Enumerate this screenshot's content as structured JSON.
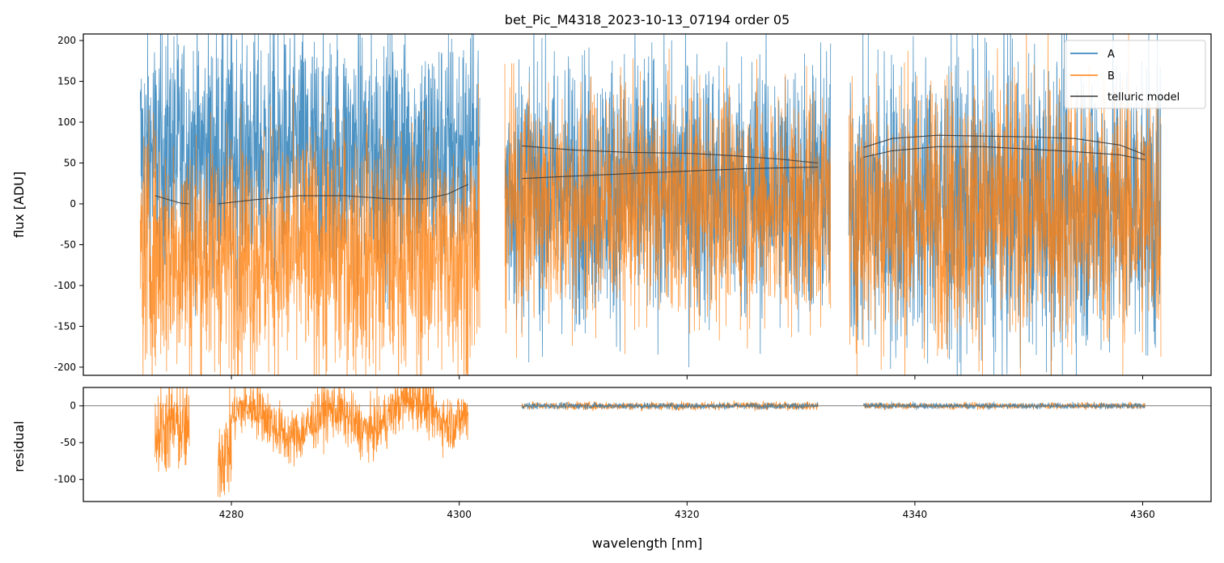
{
  "chart_data": [
    {
      "type": "line",
      "title": "bet_Pic_M4318_2023-10-13_07194  order 05",
      "xlabel": "",
      "ylabel": "flux [ADU]",
      "xlim": [
        4267,
        4366
      ],
      "ylim": [
        -210,
        208
      ],
      "yticks": [
        200,
        150,
        100,
        50,
        0,
        -50,
        -100,
        -150,
        -200
      ],
      "xticks": [
        4280,
        4300,
        4320,
        4340,
        4360
      ],
      "legend": {
        "placement": "top-right",
        "entries": [
          "A",
          "B",
          "telluric model"
        ]
      },
      "series": [
        {
          "name": "A",
          "color": "#1f77b4",
          "segments": [
            {
              "x_start": 4272.0,
              "x_end": 4301.8,
              "center": 60,
              "spread": 140,
              "style": "noisy spectrum, upper band"
            },
            {
              "x_start": 4304.0,
              "x_end": 4332.6,
              "center": 20,
              "spread": 150,
              "style": "noisy spectrum"
            },
            {
              "x_start": 4334.2,
              "x_end": 4361.6,
              "center": 0,
              "spread": 170,
              "style": "noisy spectrum"
            }
          ]
        },
        {
          "name": "B",
          "color": "#ff7f0e",
          "segments": [
            {
              "x_start": 4272.0,
              "x_end": 4301.8,
              "center": -60,
              "spread": 140,
              "style": "noisy spectrum, lower band"
            },
            {
              "x_start": 4304.0,
              "x_end": 4332.6,
              "center": 0,
              "spread": 130,
              "style": "noisy spectrum"
            },
            {
              "x_start": 4334.2,
              "x_end": 4361.6,
              "center": -10,
              "spread": 150,
              "style": "noisy spectrum"
            }
          ]
        },
        {
          "name": "telluric model",
          "color": "#3a3a3a",
          "curves": [
            {
              "x": [
                4273.3,
                4274.5,
                4275.5,
                4276.3
              ],
              "y": [
                10,
                5,
                1,
                0
              ]
            },
            {
              "x": [
                4278.8,
                4282,
                4286,
                4290,
                4294,
                4297,
                4299,
                4300.8
              ],
              "y": [
                0,
                5,
                10,
                10,
                6,
                6,
                12,
                24
              ]
            },
            {
              "x": [
                4305.5,
                4310,
                4315,
                4320,
                4324,
                4328,
                4331.5
              ],
              "y": [
                71,
                66,
                63,
                62,
                59,
                55,
                50
              ]
            },
            {
              "x": [
                4305.5,
                4310,
                4315,
                4320,
                4325,
                4331.5
              ],
              "y": [
                31,
                34,
                37,
                40,
                43,
                45
              ]
            },
            {
              "x": [
                4335.5,
                4338,
                4342,
                4346,
                4350,
                4354,
                4358,
                4360.2
              ],
              "y": [
                69,
                80,
                84,
                83,
                82,
                80,
                72,
                60
              ]
            },
            {
              "x": [
                4335.5,
                4338,
                4342,
                4346,
                4350,
                4354,
                4358,
                4360.2
              ],
              "y": [
                57,
                65,
                70,
                70,
                67,
                64,
                60,
                54
              ]
            }
          ]
        }
      ]
    },
    {
      "type": "line",
      "title": "",
      "xlabel": "wavelength [nm]",
      "ylabel": "residual",
      "xlim": [
        4267,
        4366
      ],
      "ylim": [
        -130,
        25
      ],
      "yticks": [
        0,
        -50,
        -100
      ],
      "xticks": [
        4280,
        4300,
        4320,
        4340,
        4360
      ],
      "hline": 0,
      "series": [
        {
          "name": "A",
          "color": "#1f77b4",
          "segments": [
            {
              "x_start": 4305.5,
              "x_end": 4331.5,
              "center": 0,
              "spread": 4
            },
            {
              "x_start": 4335.5,
              "x_end": 4360.2,
              "center": 0,
              "spread": 4
            }
          ]
        },
        {
          "name": "B",
          "color": "#ff7f0e",
          "segments": [
            {
              "x_start": 4273.3,
              "x_end": 4276.3,
              "center": -40,
              "spread": 60,
              "style": "deep dips to below -130"
            },
            {
              "x_start": 4278.8,
              "x_end": 4280.0,
              "center": -70,
              "spread": 60,
              "style": "deep dips to below -130"
            },
            {
              "x_start": 4280.0,
              "x_end": 4300.8,
              "center": -15,
              "spread": 35,
              "style": "wavy residual with dips to about -100"
            },
            {
              "x_start": 4305.5,
              "x_end": 4331.5,
              "center": 0,
              "spread": 5
            },
            {
              "x_start": 4335.5,
              "x_end": 4360.2,
              "center": 0,
              "spread": 4
            }
          ]
        }
      ]
    }
  ]
}
